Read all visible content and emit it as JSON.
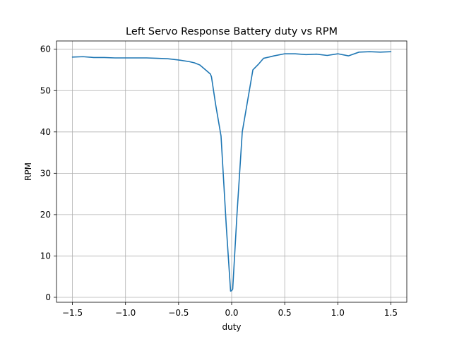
{
  "chart_data": {
    "type": "line",
    "title": "Left Servo Response Battery duty vs RPM",
    "xlabel": "duty",
    "ylabel": "RPM",
    "xlim": [
      -1.65,
      1.65
    ],
    "ylim": [
      -1.2,
      62.0
    ],
    "xticks": [
      -1.5,
      -1.0,
      -0.5,
      0.0,
      0.5,
      1.0,
      1.5
    ],
    "xtick_labels": [
      "−1.5",
      "−1.0",
      "−0.5",
      "0.0",
      "0.5",
      "1.0",
      "1.5"
    ],
    "yticks": [
      0,
      10,
      20,
      30,
      40,
      50,
      60
    ],
    "ytick_labels": [
      "0",
      "10",
      "20",
      "30",
      "40",
      "50",
      "60"
    ],
    "grid": true,
    "line_color": "#1f77b4",
    "series": [
      {
        "x": [
          -1.5,
          -1.4,
          -1.3,
          -1.2,
          -1.1,
          -1.0,
          -0.9,
          -0.8,
          -0.7,
          -0.6,
          -0.5,
          -0.4,
          -0.35,
          -0.3,
          -0.25,
          -0.2,
          -0.19,
          -0.15,
          -0.1,
          -0.05,
          -0.01,
          0.0,
          0.01,
          0.05,
          0.1,
          0.15,
          0.2,
          0.25,
          0.3,
          0.4,
          0.5,
          0.6,
          0.7,
          0.8,
          0.9,
          1.0,
          1.1,
          1.2,
          1.3,
          1.4,
          1.5
        ],
        "y": [
          58.1,
          58.2,
          58.0,
          58.0,
          57.9,
          57.9,
          57.9,
          57.9,
          57.8,
          57.7,
          57.4,
          57.0,
          56.7,
          56.2,
          55.1,
          54.0,
          53.3,
          46.5,
          39.0,
          17.0,
          1.5,
          1.6,
          2.0,
          20.0,
          40.0,
          47.5,
          55.0,
          56.3,
          57.8,
          58.4,
          58.9,
          58.9,
          58.7,
          58.8,
          58.5,
          58.9,
          58.4,
          59.3,
          59.4,
          59.3,
          59.4
        ]
      }
    ]
  }
}
